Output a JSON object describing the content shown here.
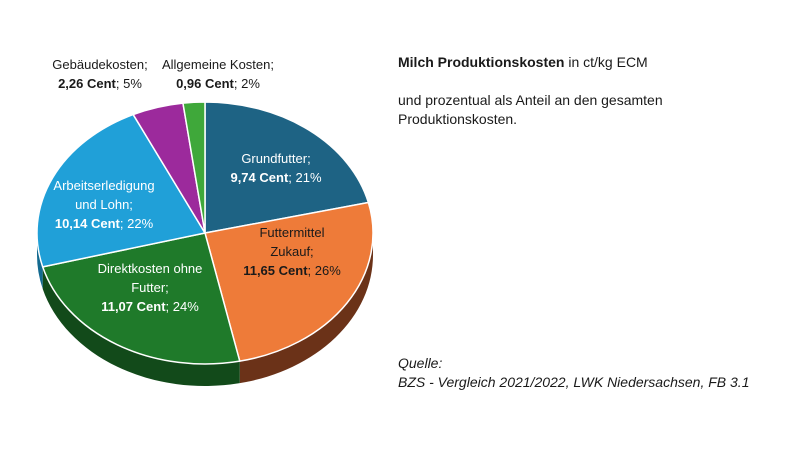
{
  "chart_data": {
    "type": "pie",
    "style": "3d",
    "unit": "ct/kg ECM",
    "slices": [
      {
        "name": "Grundfutter;",
        "value": 9.74,
        "value_text": "9,74 Cent",
        "percent_text": "21%",
        "color": "#1e6384",
        "side_color": "#123f55"
      },
      {
        "name": "Futtermittel Zukauf;",
        "value": 11.65,
        "value_text": "11,65 Cent",
        "percent_text": "26%",
        "color": "#ee7b39",
        "side_color": "#6b3218"
      },
      {
        "name": "Direktkosten ohne Futter;",
        "value": 11.07,
        "value_text": "11,07 Cent",
        "percent_text": "24%",
        "color": "#1f7a2a",
        "side_color": "#124a1a"
      },
      {
        "name": "Arbeitserledigung und Lohn;",
        "value": 10.14,
        "value_text": "10,14 Cent",
        "percent_text": "22%",
        "color": "#20a0d8",
        "side_color": "#136a90"
      },
      {
        "name": "Gebäudekosten;",
        "value": 2.26,
        "value_text": "2,26 Cent",
        "percent_text": "5%",
        "color": "#9c2a9c",
        "side_color": "#5e1a5e"
      },
      {
        "name": "Allgemeine Kosten;",
        "value": 0.96,
        "value_text": "0,96 Cent",
        "percent_text": "2%",
        "color": "#3fa83a",
        "side_color": "#246322"
      }
    ]
  },
  "info": {
    "title_bold": "Milch Produktionskosten",
    "title_rest": " in ct/kg ECM",
    "description": "und prozentual als Anteil an den gesamten Produktionskosten."
  },
  "source": {
    "label": "Quelle:",
    "text": "BZS - Vergleich 2021/2022, LWK Niedersachsen, FB 3.1"
  }
}
